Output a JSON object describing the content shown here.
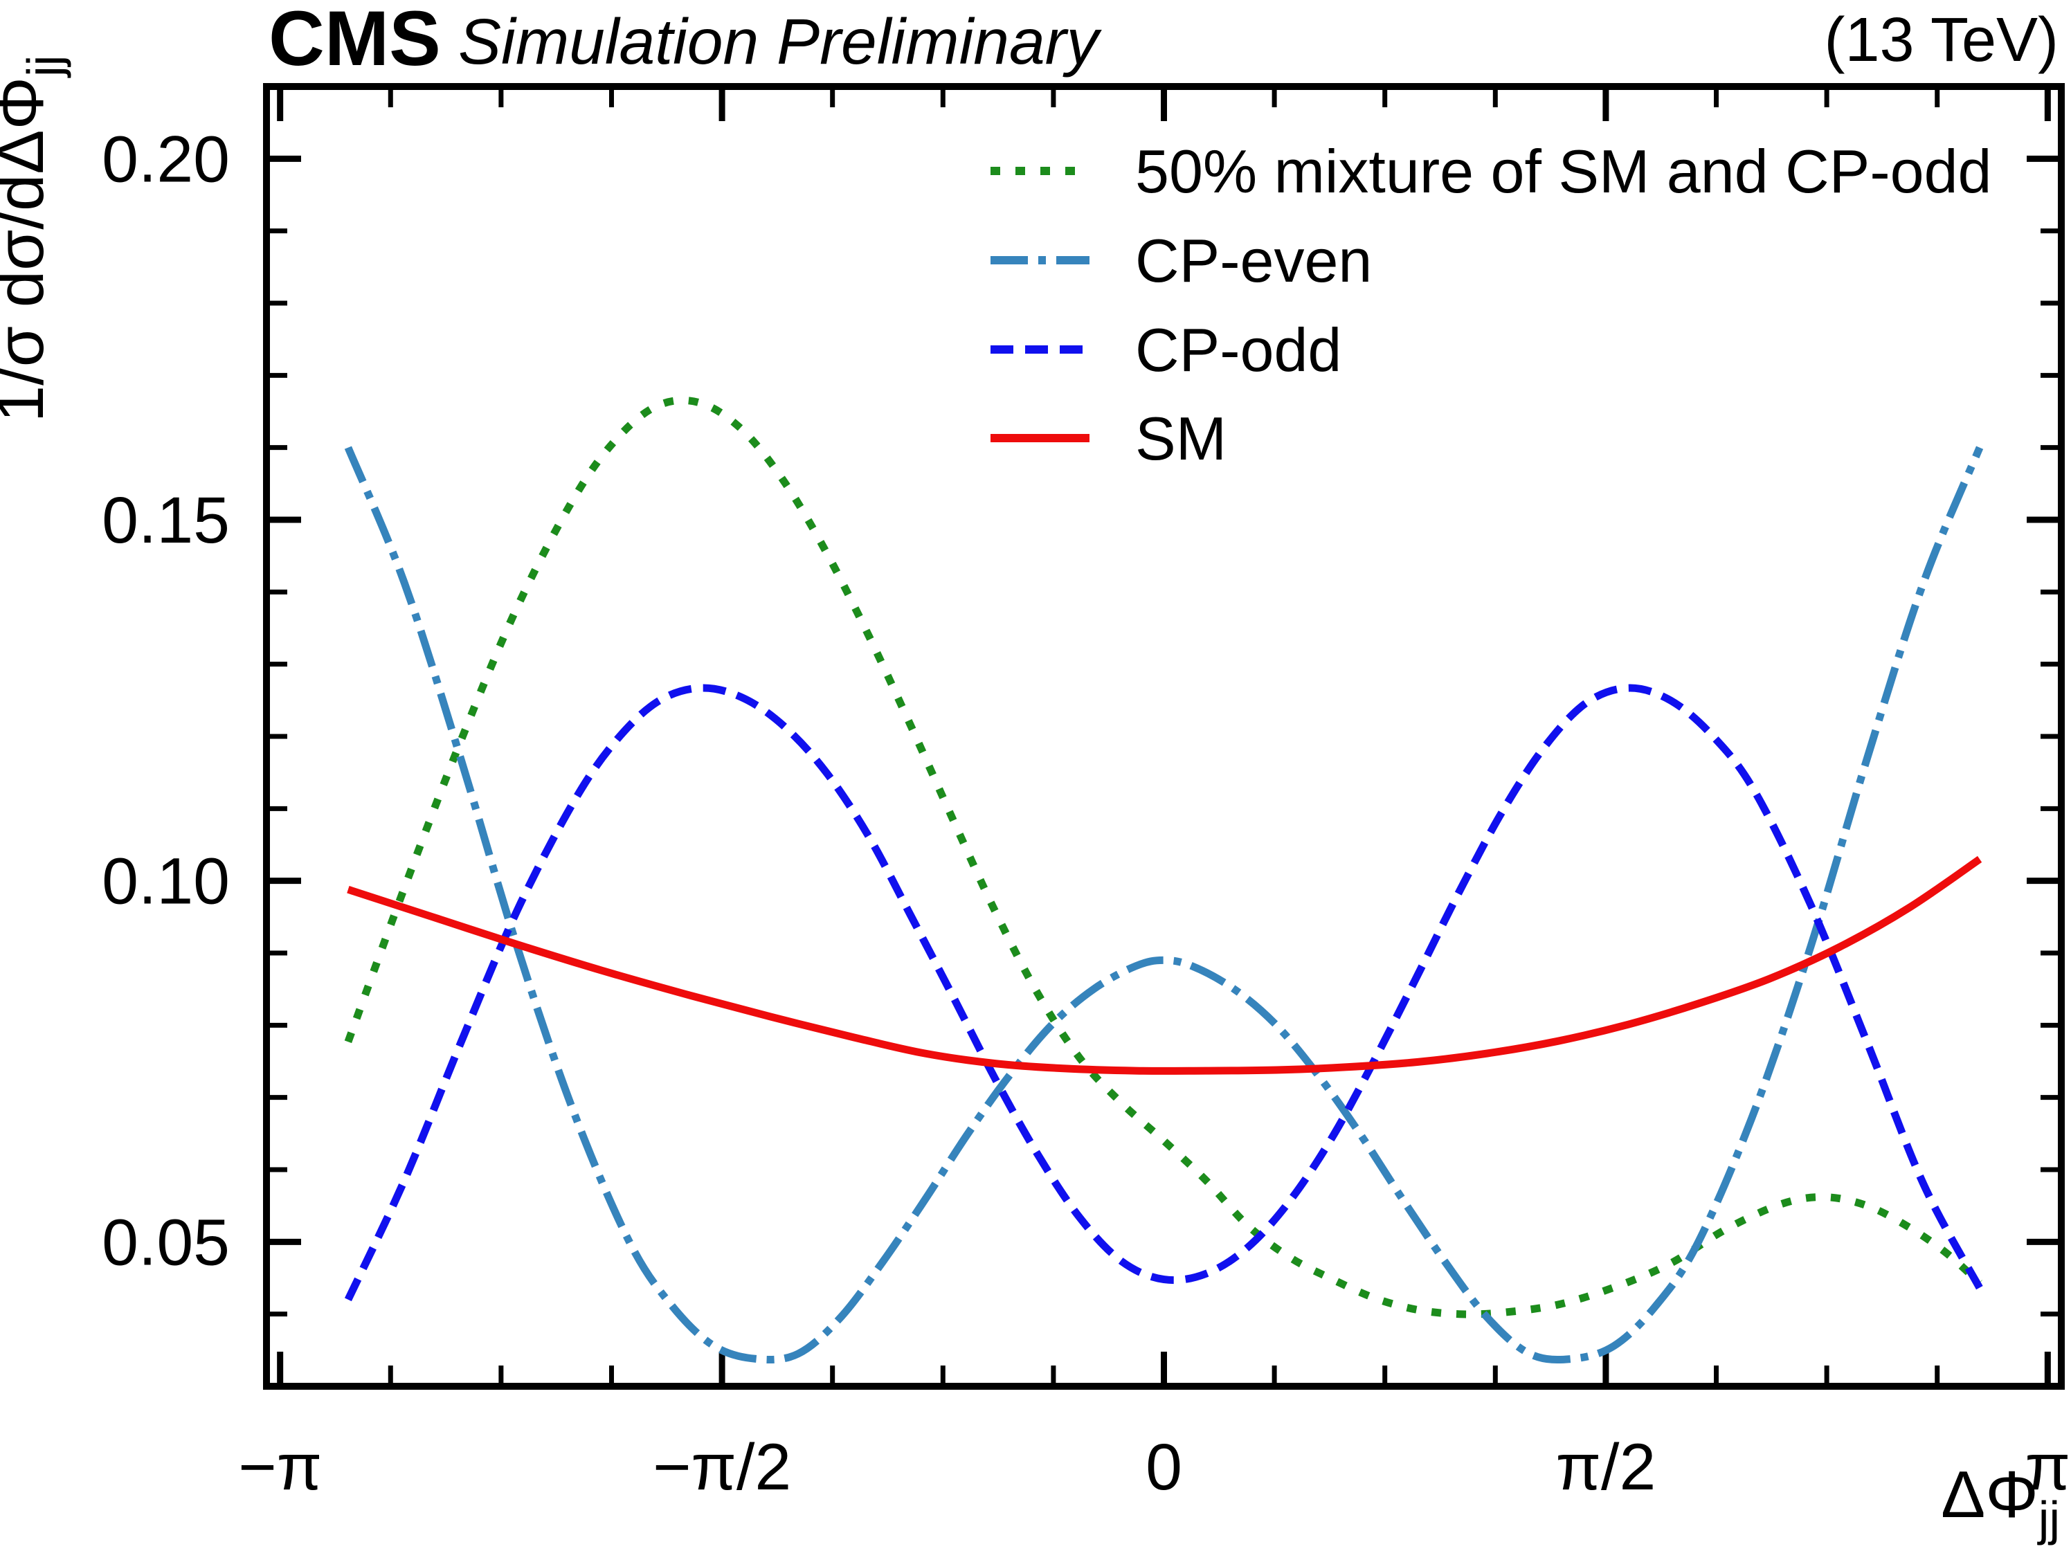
{
  "header": {
    "experiment": "CMS",
    "sublabel": "Simulation Preliminary",
    "energy": "(13 TeV)"
  },
  "axes": {
    "x": {
      "title_main": "ΔΦ",
      "title_sub": "jj",
      "range": [
        -3.19,
        3.19
      ],
      "major_ticks": {
        "values": [
          -3.14159265,
          -1.57079633,
          0,
          1.57079633,
          3.14159265
        ],
        "labels": [
          "−π",
          "−π/2",
          "0",
          "π/2",
          "π"
        ]
      },
      "minor_tick_step": 0.39269908
    },
    "y": {
      "title_main": "1/σ dσ/dΔΦ",
      "title_sub": "jj",
      "range": [
        0.03,
        0.21
      ],
      "major_ticks": {
        "values": [
          0.05,
          0.1,
          0.15,
          0.2
        ],
        "labels": [
          "0.05",
          "0.10",
          "0.15",
          "0.20"
        ]
      },
      "minor_tick_step": 0.01
    }
  },
  "chart_data": {
    "type": "line",
    "title": "CMS Simulation Preliminary (13 TeV)",
    "xlabel": "ΔΦ_jj",
    "ylabel": "1/σ dσ/dΔΦ_jj",
    "xlim": [
      -3.19,
      3.19
    ],
    "ylim": [
      0.03,
      0.21
    ],
    "grid": false,
    "legend_position": "top-right-inside",
    "series": [
      {
        "name": "50% mixture of SM and CP-odd",
        "style": "dotted",
        "color": "#1c8c1c",
        "points": [
          [
            -2.9,
            0.0777
          ],
          [
            -2.7,
            0.099
          ],
          [
            -2.5,
            0.1193
          ],
          [
            -2.3,
            0.1378
          ],
          [
            -2.1,
            0.1528
          ],
          [
            -1.95,
            0.161
          ],
          [
            -1.8,
            0.1658
          ],
          [
            -1.65,
            0.1662
          ],
          [
            -1.5,
            0.1625
          ],
          [
            -1.35,
            0.1553
          ],
          [
            -1.2,
            0.1455
          ],
          [
            -1.05,
            0.134
          ],
          [
            -0.9,
            0.1215
          ],
          [
            -0.75,
            0.1085
          ],
          [
            -0.6,
            0.0958
          ],
          [
            -0.45,
            0.0845
          ],
          [
            -0.3,
            0.0755
          ],
          [
            -0.15,
            0.0692
          ],
          [
            0.0,
            0.064
          ],
          [
            0.15,
            0.0585
          ],
          [
            0.3,
            0.0522
          ],
          [
            0.45,
            0.0478
          ],
          [
            0.6,
            0.0448
          ],
          [
            0.75,
            0.0422
          ],
          [
            0.9,
            0.0406
          ],
          [
            1.05,
            0.04
          ],
          [
            1.2,
            0.0402
          ],
          [
            1.4,
            0.0413
          ],
          [
            1.6,
            0.0437
          ],
          [
            1.8,
            0.047
          ],
          [
            2.0,
            0.0518
          ],
          [
            2.2,
            0.0553
          ],
          [
            2.35,
            0.0562
          ],
          [
            2.5,
            0.055
          ],
          [
            2.65,
            0.052
          ],
          [
            2.78,
            0.0485
          ],
          [
            2.9,
            0.0443
          ]
        ]
      },
      {
        "name": "CP-even",
        "style": "dashdot",
        "color": "#3684bc",
        "points": [
          [
            -2.9,
            0.16
          ],
          [
            -2.7,
            0.1413
          ],
          [
            -2.5,
            0.117
          ],
          [
            -2.3,
            0.091
          ],
          [
            -2.1,
            0.0682
          ],
          [
            -1.9,
            0.05
          ],
          [
            -1.75,
            0.0412
          ],
          [
            -1.6,
            0.0356
          ],
          [
            -1.45,
            0.0338
          ],
          [
            -1.3,
            0.0345
          ],
          [
            -1.15,
            0.0395
          ],
          [
            -1.0,
            0.0472
          ],
          [
            -0.85,
            0.0558
          ],
          [
            -0.7,
            0.0648
          ],
          [
            -0.55,
            0.073
          ],
          [
            -0.4,
            0.08
          ],
          [
            -0.25,
            0.085
          ],
          [
            -0.1,
            0.0882
          ],
          [
            0.0,
            0.089
          ],
          [
            0.1,
            0.0882
          ],
          [
            0.25,
            0.085
          ],
          [
            0.4,
            0.08
          ],
          [
            0.55,
            0.073
          ],
          [
            0.7,
            0.0648
          ],
          [
            0.85,
            0.0558
          ],
          [
            1.0,
            0.0472
          ],
          [
            1.15,
            0.0395
          ],
          [
            1.3,
            0.0345
          ],
          [
            1.45,
            0.0338
          ],
          [
            1.6,
            0.0356
          ],
          [
            1.75,
            0.0412
          ],
          [
            1.9,
            0.05
          ],
          [
            2.1,
            0.0682
          ],
          [
            2.3,
            0.091
          ],
          [
            2.5,
            0.117
          ],
          [
            2.7,
            0.1413
          ],
          [
            2.9,
            0.16
          ]
        ]
      },
      {
        "name": "CP-odd",
        "style": "dashed",
        "color": "#1010ee",
        "points": [
          [
            -2.9,
            0.042
          ],
          [
            -2.7,
            0.0585
          ],
          [
            -2.5,
            0.0775
          ],
          [
            -2.3,
            0.0958
          ],
          [
            -2.1,
            0.1108
          ],
          [
            -1.95,
            0.1193
          ],
          [
            -1.8,
            0.1248
          ],
          [
            -1.65,
            0.1267
          ],
          [
            -1.5,
            0.1254
          ],
          [
            -1.35,
            0.1214
          ],
          [
            -1.2,
            0.115
          ],
          [
            -1.05,
            0.1062
          ],
          [
            -0.9,
            0.0952
          ],
          [
            -0.75,
            0.084
          ],
          [
            -0.6,
            0.0726
          ],
          [
            -0.45,
            0.0622
          ],
          [
            -0.3,
            0.0534
          ],
          [
            -0.15,
            0.0473
          ],
          [
            0.0,
            0.0448
          ],
          [
            0.15,
            0.0456
          ],
          [
            0.3,
            0.0493
          ],
          [
            0.45,
            0.0558
          ],
          [
            0.6,
            0.0646
          ],
          [
            0.75,
            0.0753
          ],
          [
            0.9,
            0.0868
          ],
          [
            1.05,
            0.0985
          ],
          [
            1.2,
            0.1094
          ],
          [
            1.35,
            0.1184
          ],
          [
            1.5,
            0.1246
          ],
          [
            1.65,
            0.1267
          ],
          [
            1.8,
            0.125
          ],
          [
            1.95,
            0.1201
          ],
          [
            2.1,
            0.1124
          ],
          [
            2.3,
            0.0966
          ],
          [
            2.5,
            0.0776
          ],
          [
            2.7,
            0.058
          ],
          [
            2.9,
            0.0436
          ]
        ]
      },
      {
        "name": "SM",
        "style": "solid",
        "color": "#ee0c0c",
        "points": [
          [
            -2.9,
            0.0988
          ],
          [
            -2.6,
            0.095
          ],
          [
            -2.3,
            0.0912
          ],
          [
            -2.0,
            0.0876
          ],
          [
            -1.7,
            0.0843
          ],
          [
            -1.4,
            0.0812
          ],
          [
            -1.1,
            0.0783
          ],
          [
            -0.85,
            0.0761
          ],
          [
            -0.6,
            0.0747
          ],
          [
            -0.35,
            0.074
          ],
          [
            -0.1,
            0.0737
          ],
          [
            0.15,
            0.0737
          ],
          [
            0.4,
            0.0738
          ],
          [
            0.65,
            0.0742
          ],
          [
            0.9,
            0.0749
          ],
          [
            1.15,
            0.0761
          ],
          [
            1.4,
            0.0778
          ],
          [
            1.65,
            0.0801
          ],
          [
            1.9,
            0.083
          ],
          [
            2.15,
            0.0864
          ],
          [
            2.4,
            0.0908
          ],
          [
            2.65,
            0.0963
          ],
          [
            2.9,
            0.103
          ]
        ]
      }
    ]
  }
}
